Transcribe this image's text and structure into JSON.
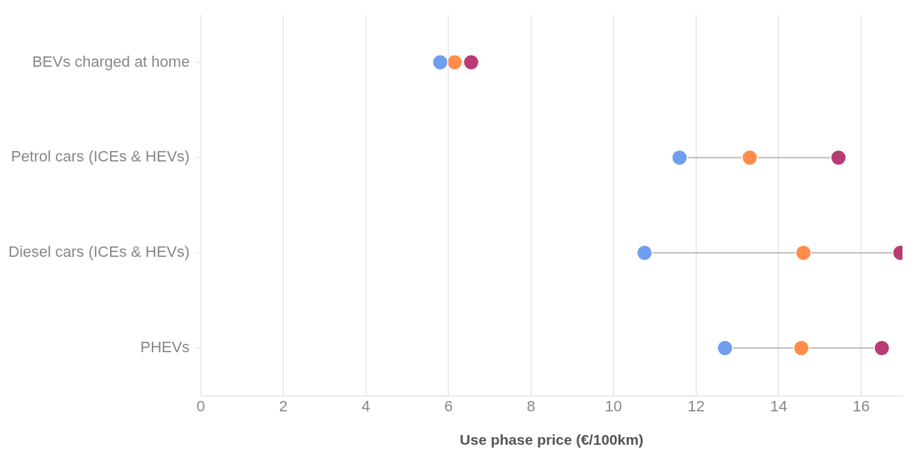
{
  "chart_data": {
    "type": "scatter",
    "orientation": "horizontal",
    "xlabel": "Use phase price (€/100km)",
    "categories": [
      "BEVs charged at home",
      "Petrol cars (ICEs & HEVs)",
      "Diesel cars (ICEs & HEVs)",
      "PHEVs"
    ],
    "series": [
      {
        "color": "#6f9ef0",
        "values": [
          5.8,
          11.6,
          10.75,
          12.7
        ]
      },
      {
        "color": "#ff8c4b",
        "values": [
          6.15,
          13.3,
          14.6,
          14.55
        ]
      },
      {
        "color": "#b83b74",
        "values": [
          6.55,
          15.45,
          16.95,
          16.5
        ]
      }
    ],
    "xlim": [
      0,
      17
    ],
    "xticks": [
      0,
      2,
      4,
      6,
      8,
      10,
      12,
      14,
      16
    ],
    "grid": "x",
    "legend": false,
    "marker": "circle"
  }
}
